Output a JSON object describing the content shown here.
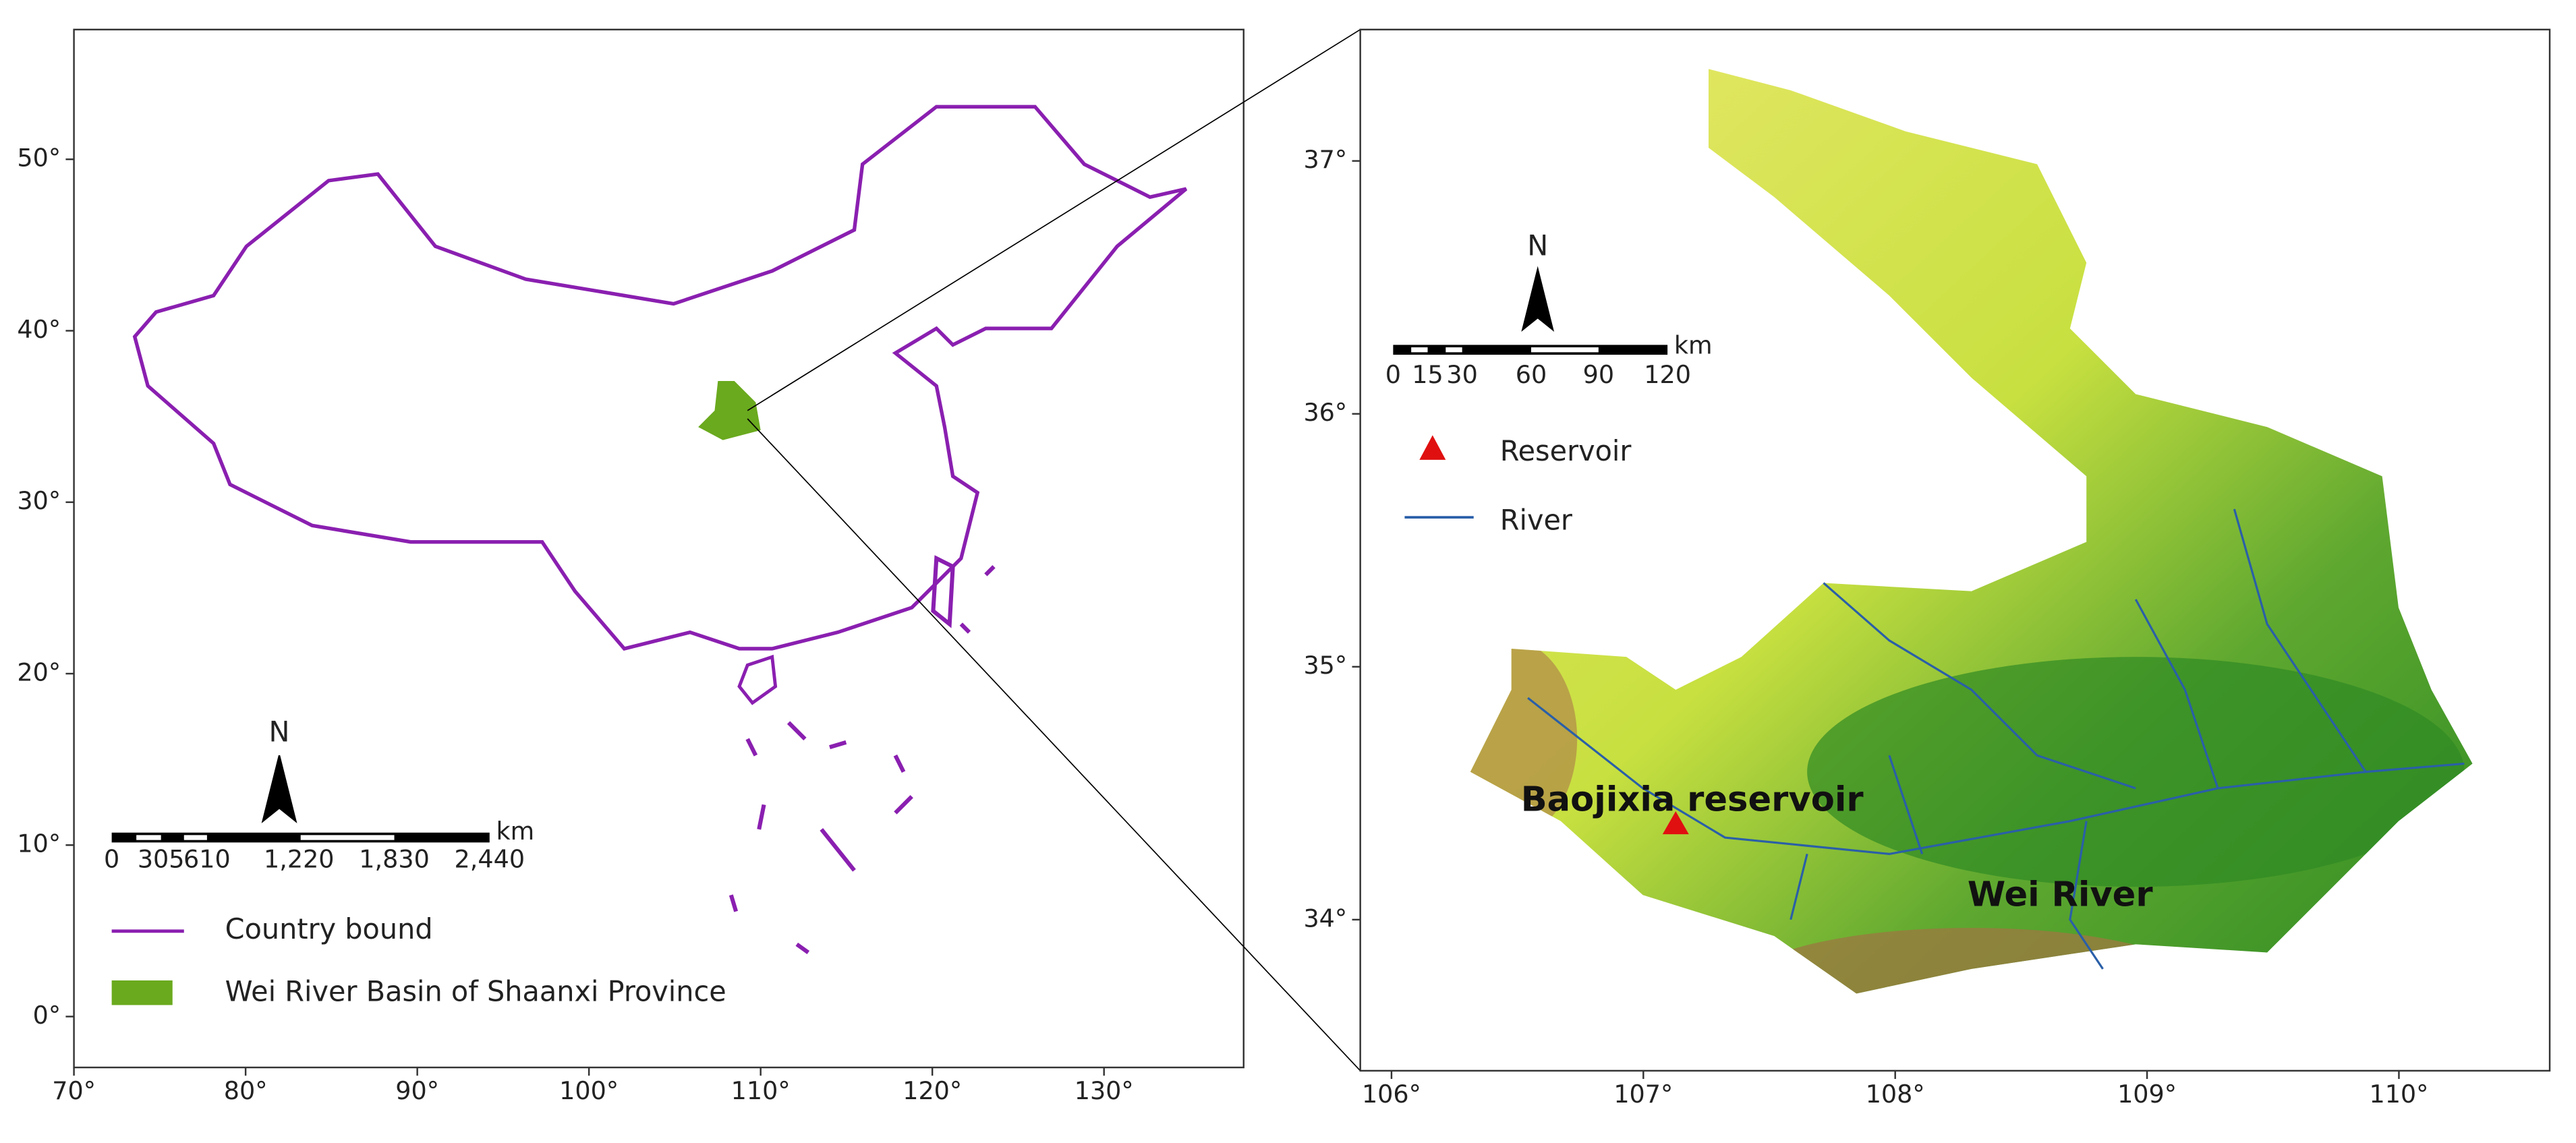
{
  "left_map": {
    "x_ticks": [
      "70°",
      "80°",
      "90°",
      "100°",
      "110°",
      "120°",
      "130°"
    ],
    "y_ticks": [
      "0°",
      "10°",
      "20°",
      "30°",
      "40°",
      "50°"
    ],
    "scale_bar": {
      "labels": [
        "0",
        "305",
        "610",
        "1,220",
        "1,830",
        "2,440"
      ],
      "unit": "km"
    },
    "north": "N",
    "legend": [
      "Country bound",
      "Wei River Basin of Shaanxi Province"
    ]
  },
  "right_map": {
    "x_ticks": [
      "106°",
      "107°",
      "108°",
      "109°",
      "110°"
    ],
    "y_ticks": [
      "34°",
      "35°",
      "36°",
      "37°"
    ],
    "scale_bar": {
      "labels": [
        "0",
        "15",
        "30",
        "60",
        "90",
        "120"
      ],
      "unit": "km"
    },
    "north": "N",
    "legend": [
      "Reservoir",
      "River"
    ],
    "annotations": [
      "Baojixia reservoir",
      "Wei River"
    ]
  }
}
